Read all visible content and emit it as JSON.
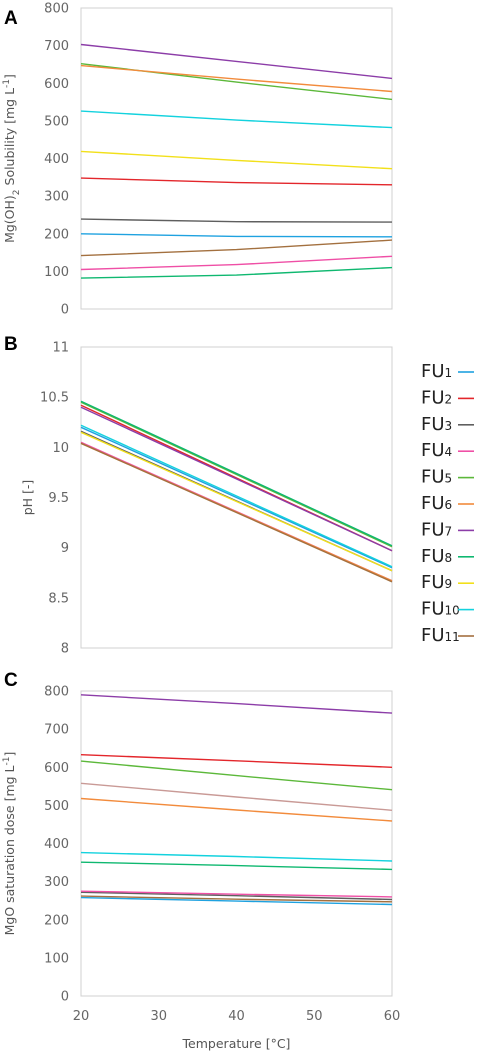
{
  "panels": [
    {
      "letter": "A"
    },
    {
      "letter": "B"
    },
    {
      "letter": "C"
    }
  ],
  "chart_data": [
    {
      "type": "line",
      "title": "",
      "ylabel_prefix": "Mg(OH)",
      "ylabel_sub": "2",
      "ylabel_suffix": " Solubility [mg L",
      "ylabel_sup": "-1",
      "ylabel_end": "]",
      "xlim": [
        20,
        60
      ],
      "ylim": [
        0,
        800
      ],
      "yticks": [
        0,
        100,
        200,
        300,
        400,
        500,
        600,
        700,
        800
      ],
      "series": [
        {
          "name": "FU1",
          "color": "#1fa2e0",
          "x": [
            20,
            40,
            60
          ],
          "y": [
            200,
            193,
            192
          ]
        },
        {
          "name": "FU2",
          "color": "#e3262b",
          "x": [
            20,
            40,
            60
          ],
          "y": [
            348,
            336,
            330
          ]
        },
        {
          "name": "FU3",
          "color": "#5f5f5f",
          "x": [
            20,
            40,
            60
          ],
          "y": [
            239,
            232,
            231
          ]
        },
        {
          "name": "FU4",
          "color": "#ef4fa6",
          "x": [
            20,
            40,
            60
          ],
          "y": [
            105,
            118,
            140
          ]
        },
        {
          "name": "FU5",
          "color": "#5cb83a",
          "x": [
            20,
            40,
            60
          ],
          "y": [
            652,
            603,
            557
          ]
        },
        {
          "name": "FU6",
          "color": "#f28b3c",
          "x": [
            20,
            40,
            60
          ],
          "y": [
            647,
            611,
            578
          ]
        },
        {
          "name": "FU7",
          "color": "#8c3da8",
          "x": [
            20,
            40,
            60
          ],
          "y": [
            703,
            658,
            613
          ]
        },
        {
          "name": "FU8",
          "color": "#0fb870",
          "x": [
            20,
            40,
            60
          ],
          "y": [
            82,
            90,
            110
          ]
        },
        {
          "name": "FU9",
          "color": "#f2e01a",
          "x": [
            20,
            40,
            60
          ],
          "y": [
            419,
            395,
            373
          ]
        },
        {
          "name": "FU10",
          "color": "#13d2de",
          "x": [
            20,
            40,
            60
          ],
          "y": [
            526,
            502,
            482
          ]
        },
        {
          "name": "FU11",
          "color": "#a3703f",
          "x": [
            20,
            40,
            60
          ],
          "y": [
            142,
            158,
            183
          ]
        }
      ]
    },
    {
      "type": "line",
      "title": "",
      "ylabel": "pH [-]",
      "xlim": [
        20,
        60
      ],
      "ylim": [
        8,
        11
      ],
      "yticks": [
        "8",
        "8.5",
        "9",
        "9.5",
        "10",
        "10.5",
        "11"
      ],
      "series": [
        {
          "name": "FU1",
          "color": "#1fa2e0",
          "x": [
            20,
            60
          ],
          "y": [
            10.2,
            8.8
          ]
        },
        {
          "name": "FU2",
          "color": "#e3262b",
          "x": [
            20,
            60
          ],
          "y": [
            10.42,
            8.97
          ]
        },
        {
          "name": "FU3",
          "color": "#5f5f5f",
          "x": [
            20,
            60
          ],
          "y": [
            10.16,
            8.77
          ]
        },
        {
          "name": "FU4",
          "color": "#ef4fa6",
          "x": [
            20,
            60
          ],
          "y": [
            10.05,
            8.67
          ]
        },
        {
          "name": "FU5",
          "color": "#5cb83a",
          "x": [
            20,
            60
          ],
          "y": [
            10.45,
            9.01
          ]
        },
        {
          "name": "FU6",
          "color": "#f28b3c",
          "x": [
            20,
            60
          ],
          "y": [
            10.04,
            8.67
          ]
        },
        {
          "name": "FU7",
          "color": "#8c3da8",
          "x": [
            20,
            60
          ],
          "y": [
            10.4,
            8.97
          ]
        },
        {
          "name": "FU8",
          "color": "#0fb870",
          "x": [
            20,
            60
          ],
          "y": [
            10.46,
            9.02
          ]
        },
        {
          "name": "FU9",
          "color": "#f2e01a",
          "x": [
            20,
            60
          ],
          "y": [
            10.15,
            8.77
          ]
        },
        {
          "name": "FU10",
          "color": "#13d2de",
          "x": [
            20,
            60
          ],
          "y": [
            10.22,
            8.81
          ]
        },
        {
          "name": "FU11",
          "color": "#a3703f",
          "x": [
            20,
            60
          ],
          "y": [
            10.04,
            8.66
          ]
        }
      ]
    },
    {
      "type": "line",
      "title": "",
      "ylabel_prefix": "MgO saturation dose [mg L",
      "ylabel_sup": "-1",
      "ylabel_end": "]",
      "xlabel": "Temperature [°C]",
      "xlim": [
        20,
        60
      ],
      "xticks": [
        20,
        30,
        40,
        50,
        60
      ],
      "ylim": [
        0,
        800
      ],
      "yticks": [
        0,
        100,
        200,
        300,
        400,
        500,
        600,
        700,
        800
      ],
      "series": [
        {
          "name": "FU1",
          "color": "#1fa2e0",
          "x": [
            20,
            40,
            60
          ],
          "y": [
            258,
            249,
            240
          ]
        },
        {
          "name": "FU2",
          "color": "#e3262b",
          "x": [
            20,
            40,
            60
          ],
          "y": [
            633,
            617,
            600
          ]
        },
        {
          "name": "FU3",
          "color": "#5f5f5f",
          "x": [
            20,
            40,
            60
          ],
          "y": [
            272,
            263,
            253
          ]
        },
        {
          "name": "FU4",
          "color": "#ef4fa6",
          "x": [
            20,
            40,
            60
          ],
          "y": [
            275,
            267,
            260
          ]
        },
        {
          "name": "FU5",
          "color": "#5cb83a",
          "x": [
            20,
            40,
            60
          ],
          "y": [
            616,
            578,
            541
          ]
        },
        {
          "name": "FU6",
          "color": "#f28b3c",
          "x": [
            20,
            40,
            60
          ],
          "y": [
            518,
            488,
            459
          ]
        },
        {
          "name": "FU7",
          "color": "#8c3da8",
          "x": [
            20,
            40,
            60
          ],
          "y": [
            790,
            767,
            742
          ]
        },
        {
          "name": "FU8",
          "color": "#0fb870",
          "x": [
            20,
            40,
            60
          ],
          "y": [
            351,
            342,
            332
          ]
        },
        {
          "name": "FU9",
          "color": "#c99a96",
          "x": [
            20,
            40,
            60
          ],
          "y": [
            558,
            522,
            487
          ]
        },
        {
          "name": "FU10",
          "color": "#13d2de",
          "x": [
            20,
            40,
            60
          ],
          "y": [
            376,
            366,
            354
          ]
        },
        {
          "name": "FU11",
          "color": "#a3703f",
          "x": [
            20,
            40,
            60
          ],
          "y": [
            262,
            254,
            247
          ]
        }
      ]
    }
  ],
  "legend": {
    "entries": [
      {
        "base": "FU",
        "sub": "1",
        "color": "#1fa2e0"
      },
      {
        "base": "FU",
        "sub": "2",
        "color": "#e3262b"
      },
      {
        "base": "FU",
        "sub": "3",
        "color": "#5f5f5f"
      },
      {
        "base": "FU",
        "sub": "4",
        "color": "#ef4fa6"
      },
      {
        "base": "FU",
        "sub": "5",
        "color": "#5cb83a"
      },
      {
        "base": "FU",
        "sub": "6",
        "color": "#f28b3c"
      },
      {
        "base": "FU",
        "sub": "7",
        "color": "#8c3da8"
      },
      {
        "base": "FU",
        "sub": "8",
        "color": "#0fb870"
      },
      {
        "base": "FU",
        "sub": "9",
        "color": "#f2e01a"
      },
      {
        "base": "FU",
        "sub": "10",
        "color": "#13d2de"
      },
      {
        "base": "FU",
        "sub": "11",
        "color": "#a3703f"
      }
    ]
  }
}
